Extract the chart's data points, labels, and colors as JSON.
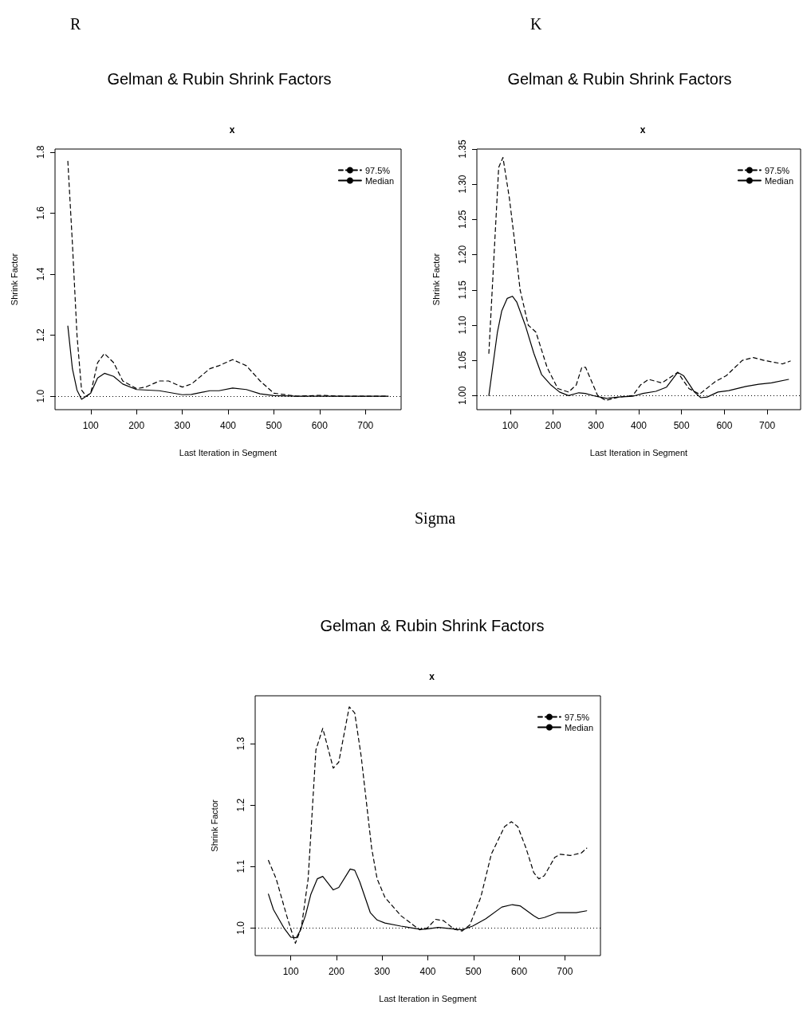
{
  "chart_data": [
    {
      "type": "line",
      "annotations": [
        "R"
      ],
      "title": "Gelman & Rubin Shrink Factors",
      "subtitle": "x",
      "xlabel": "Last Iteration in Segment",
      "ylabel": "Shrink Factor",
      "xlim": [
        22,
        778
      ],
      "xticks": [
        100,
        200,
        300,
        400,
        500,
        600,
        700
      ],
      "ylim": [
        0.956,
        1.81
      ],
      "yticks": [
        {
          "value": 1,
          "label": "1.0"
        },
        1.2,
        1.4,
        1.6,
        1.8
      ],
      "legend": "top right",
      "grid": false,
      "ref_lines": [
        {
          "axis": "y",
          "value": 1,
          "line_style": "dotted",
          "color": "#000000"
        }
      ],
      "series": [
        {
          "name": "97.5%",
          "color": "#000000",
          "line_style": "dashed",
          "x": [
            50,
            60,
            70,
            80,
            90,
            100,
            115,
            130,
            150,
            170,
            200,
            220,
            250,
            270,
            300,
            320,
            360,
            380,
            410,
            440,
            470,
            500,
            550,
            600,
            650,
            750
          ],
          "values": [
            1.77,
            1.5,
            1.2,
            1.02,
            1.0,
            1.01,
            1.11,
            1.14,
            1.11,
            1.05,
            1.025,
            1.03,
            1.05,
            1.05,
            1.03,
            1.04,
            1.09,
            1.1,
            1.12,
            1.1,
            1.05,
            1.01,
            1.0,
            1.003,
            1.0,
            1.0
          ]
        },
        {
          "name": "Median",
          "color": "#000000",
          "line_style": "solid",
          "x": [
            50,
            60,
            70,
            80,
            90,
            100,
            115,
            130,
            150,
            170,
            200,
            250,
            300,
            320,
            360,
            380,
            410,
            440,
            470,
            500,
            550,
            750
          ],
          "values": [
            1.23,
            1.09,
            1.02,
            0.99,
            1.0,
            1.01,
            1.06,
            1.075,
            1.065,
            1.04,
            1.022,
            1.018,
            1.005,
            1.006,
            1.018,
            1.018,
            1.027,
            1.022,
            1.008,
            1.002,
            1.0,
            1.0
          ]
        }
      ]
    },
    {
      "type": "line",
      "annotations": [
        "K"
      ],
      "title": "Gelman & Rubin Shrink Factors",
      "subtitle": "x",
      "xlabel": "Last Iteration in Segment",
      "ylabel": "Shrink Factor",
      "xlim": [
        22,
        778
      ],
      "xticks": [
        100,
        200,
        300,
        400,
        500,
        600,
        700
      ],
      "ylim": [
        0.98,
        1.35
      ],
      "yticks": [
        {
          "value": 1,
          "label": "1.00"
        },
        1.05,
        {
          "value": 1.1,
          "label": "1.10"
        },
        1.15,
        {
          "value": 1.2,
          "label": "1.20"
        },
        1.25,
        {
          "value": 1.3,
          "label": "1.30"
        },
        1.35
      ],
      "legend": "top right",
      "grid": false,
      "ref_lines": [
        {
          "axis": "y",
          "value": 1,
          "line_style": "dotted",
          "color": "#000000"
        }
      ],
      "series": [
        {
          "name": "97.5%",
          "color": "#000000",
          "line_style": "dashed",
          "x": [
            50,
            73,
            83,
            98,
            110,
            123,
            142,
            160,
            186,
            211,
            236,
            254,
            267,
            276,
            304,
            323,
            354,
            386,
            404,
            423,
            454,
            491,
            517,
            542,
            579,
            604,
            642,
            667,
            692,
            736,
            754
          ],
          "values": [
            1.06,
            1.324,
            1.338,
            1.28,
            1.22,
            1.15,
            1.1,
            1.09,
            1.04,
            1.01,
            1.005,
            1.015,
            1.04,
            1.04,
            1.0,
            0.993,
            0.998,
            1.0,
            1.015,
            1.023,
            1.018,
            1.033,
            1.01,
            1.002,
            1.02,
            1.028,
            1.05,
            1.054,
            1.05,
            1.045,
            1.049
          ]
        },
        {
          "name": "Median",
          "color": "#000000",
          "line_style": "solid",
          "x": [
            50,
            70,
            80,
            93,
            105,
            115,
            135,
            155,
            173,
            195,
            215,
            236,
            260,
            275,
            300,
            325,
            354,
            386,
            410,
            440,
            465,
            491,
            505,
            530,
            545,
            560,
            585,
            610,
            650,
            680,
            710,
            750
          ],
          "values": [
            1.0,
            1.09,
            1.12,
            1.138,
            1.141,
            1.133,
            1.1,
            1.06,
            1.03,
            1.015,
            1.005,
            1.0,
            1.004,
            1.003,
            0.999,
            0.996,
            0.998,
            0.999,
            1.003,
            1.006,
            1.012,
            1.033,
            1.028,
            1.005,
            0.997,
            0.998,
            1.005,
            1.007,
            1.013,
            1.016,
            1.018,
            1.023
          ]
        }
      ]
    },
    {
      "type": "line",
      "annotations": [
        "Sigma"
      ],
      "title": "Gelman & Rubin Shrink Factors",
      "subtitle": "x",
      "xlabel": "Last Iteration in Segment",
      "ylabel": "Shrink Factor",
      "xlim": [
        22,
        778
      ],
      "xticks": [
        100,
        200,
        300,
        400,
        500,
        600,
        700
      ],
      "ylim": [
        0.955,
        1.378
      ],
      "yticks": [
        {
          "value": 1,
          "label": "1.0"
        },
        1.1,
        1.2,
        1.3
      ],
      "legend": "top right",
      "grid": false,
      "ref_lines": [
        {
          "axis": "y",
          "value": 1,
          "line_style": "dotted",
          "color": "#000000"
        }
      ],
      "series": [
        {
          "name": "97.5%",
          "color": "#000000",
          "line_style": "dashed",
          "x": [
            51,
            68,
            91,
            110,
            123,
            138,
            155,
            170,
            193,
            205,
            228,
            240,
            254,
            277,
            289,
            306,
            341,
            382,
            399,
            417,
            434,
            458,
            475,
            492,
            516,
            539,
            568,
            583,
            597,
            615,
            632,
            643,
            655,
            678,
            690,
            712,
            736,
            748
          ],
          "values": [
            1.11,
            1.08,
            1.02,
            0.975,
            1.0,
            1.08,
            1.29,
            1.325,
            1.26,
            1.27,
            1.36,
            1.35,
            1.28,
            1.13,
            1.08,
            1.05,
            1.02,
            0.997,
            1.0,
            1.014,
            1.012,
            0.998,
            0.995,
            1.005,
            1.05,
            1.12,
            1.165,
            1.173,
            1.165,
            1.13,
            1.09,
            1.08,
            1.085,
            1.115,
            1.12,
            1.118,
            1.122,
            1.13
          ]
        },
        {
          "name": "Median",
          "color": "#000000",
          "line_style": "solid",
          "x": [
            51,
            62,
            85,
            100,
            112,
            120,
            132,
            144,
            158,
            170,
            193,
            205,
            230,
            240,
            251,
            274,
            289,
            306,
            341,
            382,
            394,
            423,
            475,
            498,
            527,
            562,
            585,
            602,
            632,
            643,
            655,
            684,
            725,
            748
          ],
          "values": [
            1.055,
            1.03,
            1.0,
            0.985,
            0.984,
            0.995,
            1.02,
            1.055,
            1.08,
            1.084,
            1.062,
            1.066,
            1.096,
            1.094,
            1.075,
            1.025,
            1.013,
            1.008,
            1.003,
            0.998,
            0.998,
            1.001,
            0.997,
            1.003,
            1.015,
            1.034,
            1.038,
            1.036,
            1.02,
            1.015,
            1.017,
            1.025,
            1.025,
            1.028
          ]
        }
      ]
    }
  ]
}
